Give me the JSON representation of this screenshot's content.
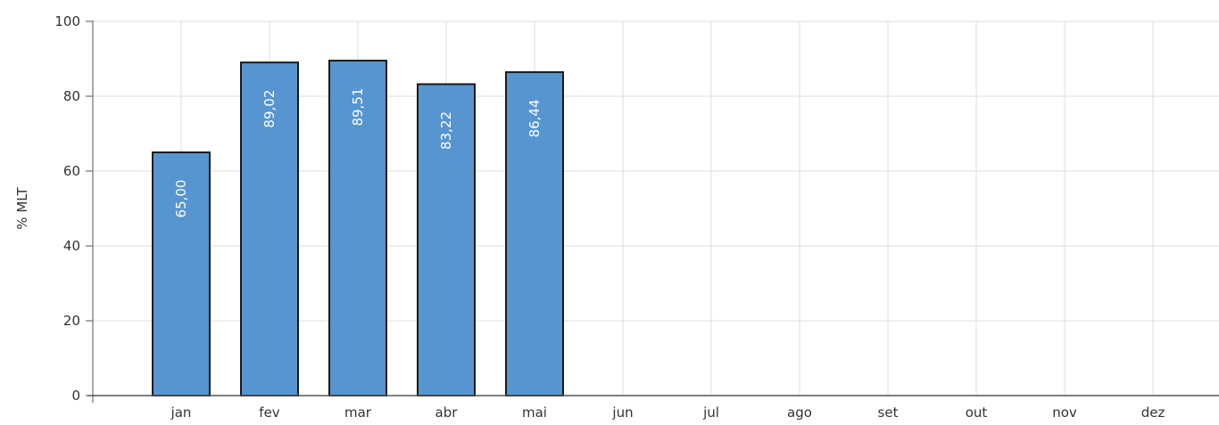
{
  "chart_data": {
    "type": "bar",
    "categories": [
      "jan",
      "fev",
      "mar",
      "abr",
      "mai",
      "jun",
      "jul",
      "ago",
      "set",
      "out",
      "nov",
      "dez"
    ],
    "values": [
      65.0,
      89.02,
      89.51,
      83.22,
      86.44,
      null,
      null,
      null,
      null,
      null,
      null,
      null
    ],
    "value_labels": [
      "65,00",
      "89,02",
      "89,51",
      "83,22",
      "86,44",
      "",
      "",
      "",
      "",
      "",
      "",
      ""
    ],
    "title": "",
    "xlabel": "",
    "ylabel": "% MLT",
    "ylim": [
      0,
      100
    ],
    "yticks": [
      0,
      20,
      40,
      60,
      80,
      100
    ],
    "grid": true,
    "legend": "none",
    "colors": {
      "bar_fill": "#5695d0",
      "bar_stroke": "#1a1a1a",
      "grid": "#dcdcdc",
      "axis": "#555555",
      "label_text": "#ffffff",
      "tick_text": "#333333"
    }
  }
}
